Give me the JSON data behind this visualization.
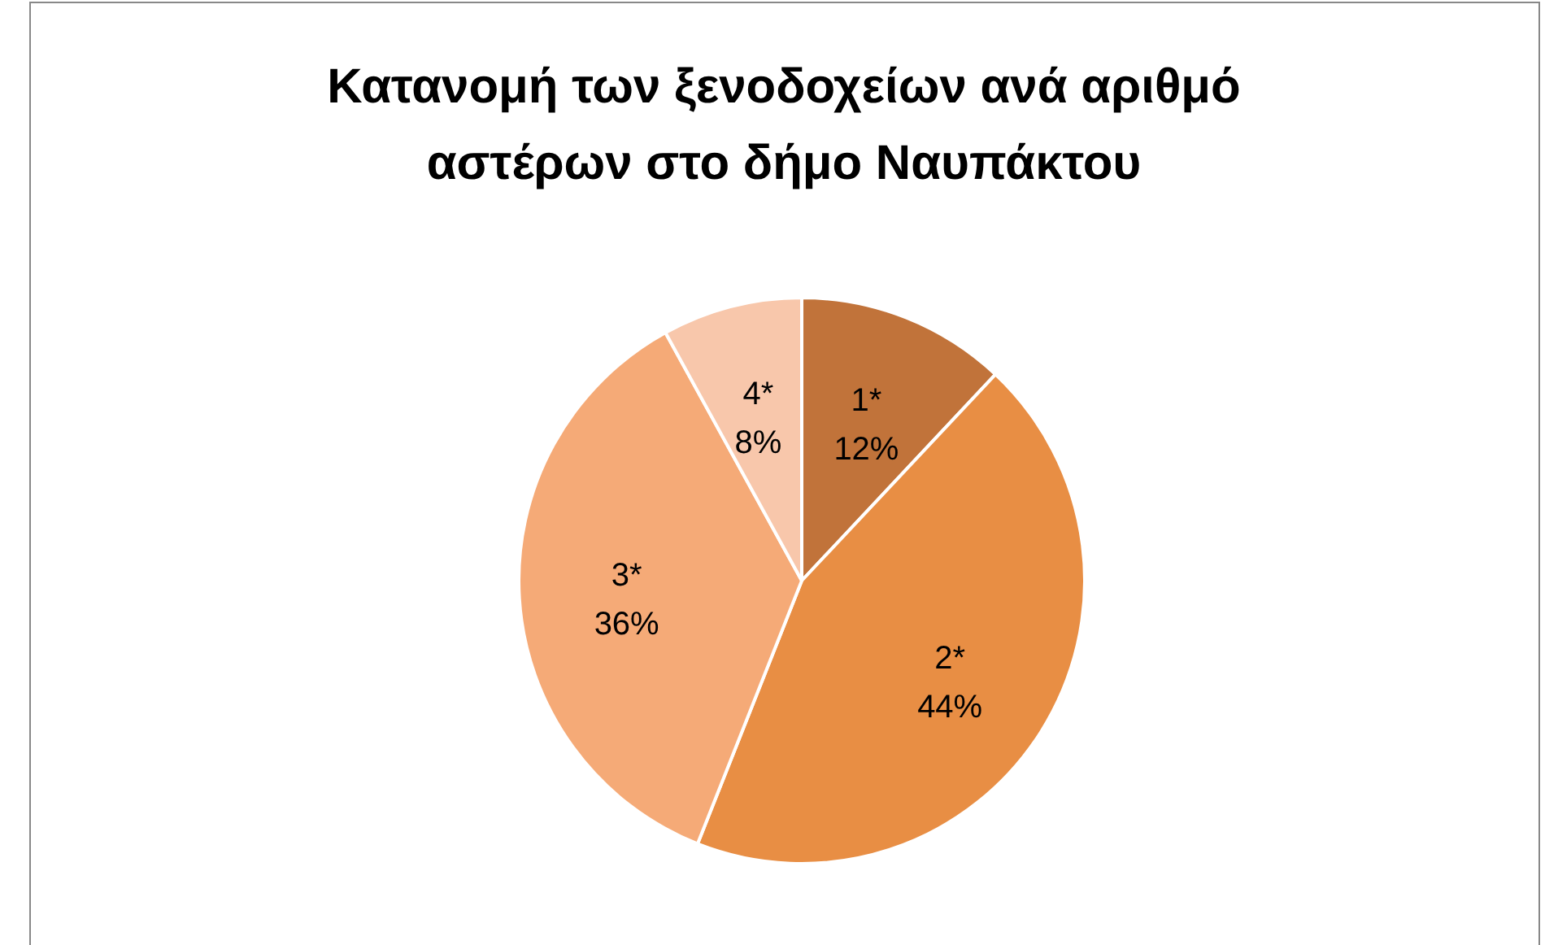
{
  "chart_data": {
    "type": "pie",
    "title": "Κατανομή των ξενοδοχείων ανά αριθμό αστέρων στο δήμο Ναυπάκτου",
    "categories": [
      "1*",
      "2*",
      "3*",
      "4*"
    ],
    "values": [
      12,
      44,
      36,
      8
    ],
    "value_labels": [
      "12%",
      "44%",
      "36%",
      "8%"
    ],
    "colors": [
      "#c1733a",
      "#e88e44",
      "#f5aa77",
      "#f8c7ab"
    ],
    "legend": false
  }
}
